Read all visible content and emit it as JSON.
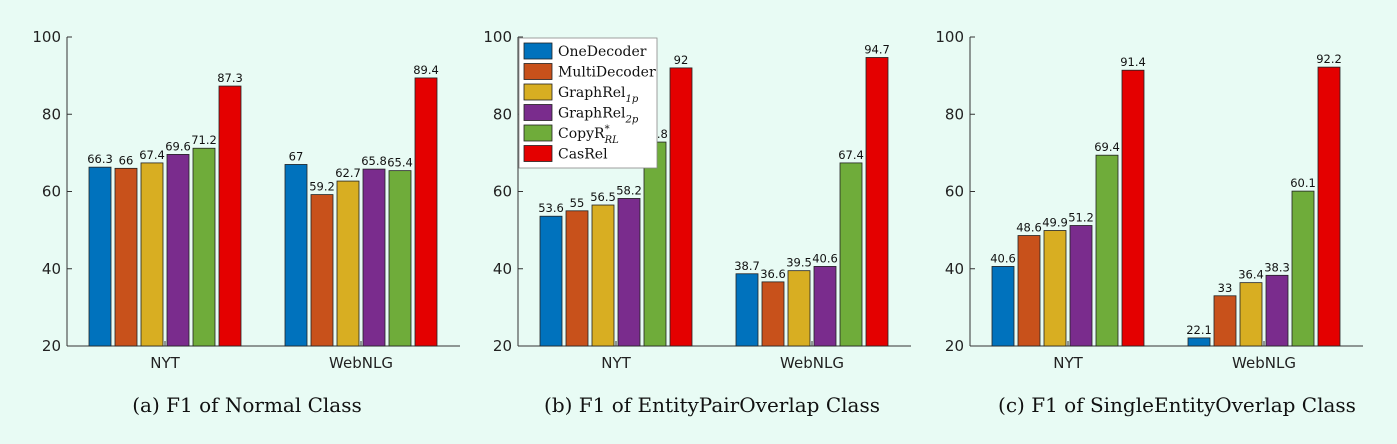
{
  "chart_data": [
    {
      "type": "bar",
      "caption": "(a)  F1 of Normal Class",
      "categories": [
        "NYT",
        "WebNLG"
      ],
      "ylim": [
        20,
        100
      ],
      "yticks": [
        20,
        40,
        60,
        80,
        100
      ],
      "series": [
        {
          "name": "OneDecoder",
          "values": [
            66.3,
            67
          ],
          "labels": [
            "66.3",
            "67"
          ]
        },
        {
          "name": "MultiDecoder",
          "values": [
            66,
            59.2
          ],
          "labels": [
            "66",
            "59.2"
          ]
        },
        {
          "name": "GraphRel_1p",
          "values": [
            67.4,
            62.7
          ],
          "labels": [
            "67.4",
            "62.7"
          ]
        },
        {
          "name": "GraphRel_2p",
          "values": [
            69.6,
            65.8
          ],
          "labels": [
            "69.6",
            "65.8"
          ]
        },
        {
          "name": "CopyR*_RL",
          "values": [
            71.2,
            65.4
          ],
          "labels": [
            "71.2",
            "65.4"
          ]
        },
        {
          "name": "CasRel",
          "values": [
            87.3,
            89.4
          ],
          "labels": [
            "87.3",
            "89.4"
          ]
        }
      ]
    },
    {
      "type": "bar",
      "caption": "(b)  F1 of EntityPairOverlap Class",
      "categories": [
        "NYT",
        "WebNLG"
      ],
      "ylim": [
        20,
        100
      ],
      "yticks": [
        20,
        40,
        60,
        80,
        100
      ],
      "legend": "top-left",
      "series": [
        {
          "name": "OneDecoder",
          "values": [
            53.6,
            38.7
          ],
          "labels": [
            "53.6",
            "38.7"
          ]
        },
        {
          "name": "MultiDecoder",
          "values": [
            55,
            36.6
          ],
          "labels": [
            "55",
            "36.6"
          ]
        },
        {
          "name": "GraphRel_1p",
          "values": [
            56.5,
            39.5
          ],
          "labels": [
            "56.5",
            "39.5"
          ]
        },
        {
          "name": "GraphRel_2p",
          "values": [
            58.2,
            40.6
          ],
          "labels": [
            "58.2",
            "40.6"
          ]
        },
        {
          "name": "CopyR*_RL",
          "values": [
            72.8,
            67.4
          ],
          "labels": [
            "72.8",
            "67.4"
          ]
        },
        {
          "name": "CasRel",
          "values": [
            92,
            94.7
          ],
          "labels": [
            "92",
            "94.7"
          ]
        }
      ]
    },
    {
      "type": "bar",
      "caption": "(c)  F1 of SingleEntityOverlap Class",
      "categories": [
        "NYT",
        "WebNLG"
      ],
      "ylim": [
        20,
        100
      ],
      "yticks": [
        20,
        40,
        60,
        80,
        100
      ],
      "series": [
        {
          "name": "OneDecoder",
          "values": [
            40.6,
            22.1
          ],
          "labels": [
            "40.6",
            "22.1"
          ]
        },
        {
          "name": "MultiDecoder",
          "values": [
            48.6,
            33
          ],
          "labels": [
            "48.6",
            "33"
          ]
        },
        {
          "name": "GraphRel_1p",
          "values": [
            49.9,
            36.4
          ],
          "labels": [
            "49.9",
            "36.4"
          ]
        },
        {
          "name": "GraphRel_2p",
          "values": [
            51.2,
            38.3
          ],
          "labels": [
            "51.2",
            "38.3"
          ]
        },
        {
          "name": "CopyR*_RL",
          "values": [
            69.4,
            60.1
          ],
          "labels": [
            "69.4",
            "60.1"
          ]
        },
        {
          "name": "CasRel",
          "values": [
            91.4,
            92.2
          ],
          "labels": [
            "91.4",
            "92.2"
          ]
        }
      ]
    }
  ],
  "legend": [
    {
      "base": "OneDecoder",
      "sub": "",
      "sup": ""
    },
    {
      "base": "MultiDecoder",
      "sub": "",
      "sup": ""
    },
    {
      "base": "GraphRel",
      "sub": "1p",
      "sup": ""
    },
    {
      "base": "GraphRel",
      "sub": "2p",
      "sup": ""
    },
    {
      "base": "CopyR",
      "sub": "RL",
      "sup": "*"
    },
    {
      "base": "CasRel",
      "sub": "",
      "sup": ""
    }
  ],
  "colors": [
    "#0072bd",
    "#c8511b",
    "#d8ae22",
    "#7a2c8d",
    "#6fac3a",
    "#e40000"
  ]
}
